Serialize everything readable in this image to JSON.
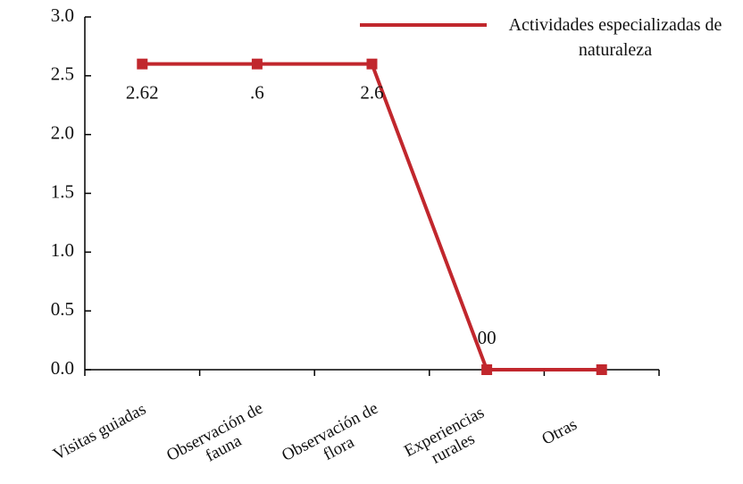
{
  "chart_data": {
    "type": "line",
    "categories": [
      "Visitas guiadas",
      "Observación de fauna",
      "Observación de flora",
      "Experiencias rurales",
      "Otras"
    ],
    "series": [
      {
        "name": "Actividades especializadas de naturaleza",
        "color": "#c1272d",
        "values": [
          2.6,
          2.6,
          2.6,
          0,
          0
        ]
      }
    ],
    "annotations": [
      "2.62",
      ".6",
      "2.6",
      "00"
    ],
    "ylim": [
      0,
      3
    ],
    "yticks": [
      {
        "value": 0,
        "label": "0.0"
      },
      {
        "value": 0.5,
        "label": "0.5"
      },
      {
        "value": 1,
        "label": "1.0"
      },
      {
        "value": 1.5,
        "label": "1.5"
      },
      {
        "value": 2,
        "label": "2.0"
      },
      {
        "value": 2.5,
        "label": "2.5"
      },
      {
        "value": 3,
        "label": "3.0"
      }
    ],
    "legend": "top-right"
  }
}
